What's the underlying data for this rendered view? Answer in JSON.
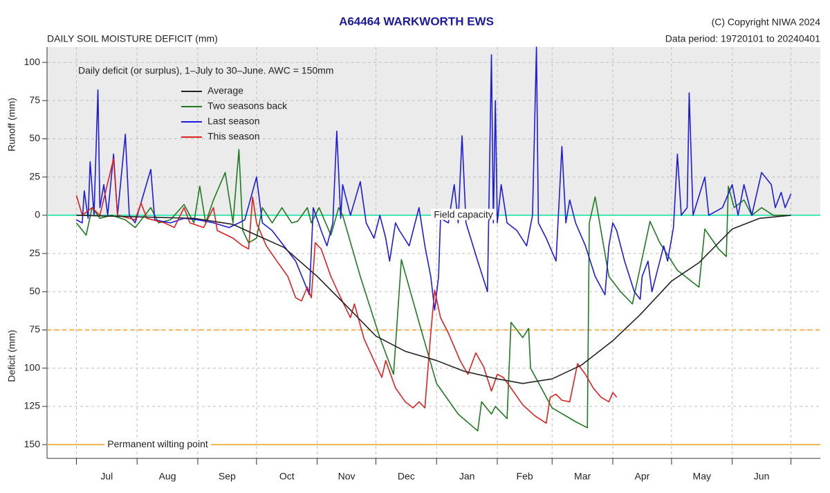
{
  "chart_data": {
    "type": "line",
    "title": "A64464  WARKWORTH EWS",
    "copyright": "(C) Copyright NIWA  2024",
    "subtitle": "DAILY SOIL MOISTURE DEFICIT (mm)",
    "data_period": "Data period:  19720101  to  20240401",
    "note": "Daily deficit (or surplus), 1–July to 30–June.  AWC = 150mm",
    "y_label_upper": "Runoff (mm)",
    "y_label_lower": "Deficit (mm)",
    "categories": [
      "Jul",
      "Aug",
      "Sep",
      "Oct",
      "Nov",
      "Dec",
      "Jan",
      "Feb",
      "Mar",
      "Apr",
      "May",
      "Jun"
    ],
    "xlim": [
      -15,
      380
    ],
    "xticks": [
      0,
      31,
      62,
      92,
      123,
      153,
      184,
      215,
      243,
      274,
      304,
      335,
      365
    ],
    "ylim": [
      -159,
      110
    ],
    "yticks": [
      100,
      75,
      50,
      25,
      0,
      {
        "value": -25,
        "label": "25"
      },
      {
        "value": -50,
        "label": "50"
      },
      {
        "value": -75,
        "label": "75"
      },
      {
        "value": -100,
        "label": "100"
      },
      {
        "value": -125,
        "label": "125"
      },
      {
        "value": -150,
        "label": "150"
      }
    ],
    "grid": true,
    "reference_lines": [
      {
        "value": 0,
        "label": "Field capacity",
        "color": "#3de8b0"
      },
      {
        "value": -75,
        "color": "#f5b342",
        "dashed": true
      },
      {
        "value": -150,
        "label": "Permanent wilting point",
        "color": "#f0b44c"
      }
    ],
    "series": [
      {
        "name": "Average",
        "color": "#222222",
        "x": [
          0,
          30,
          60,
          80,
          92,
          106,
          123,
          137,
          153,
          168,
          184,
          198,
          215,
          228,
          243,
          258,
          274,
          288,
          304,
          318,
          335,
          349,
          365
        ],
        "values": [
          0,
          -1,
          -2,
          -6,
          -13,
          -21,
          -40,
          -58,
          -79,
          -89,
          -95,
          -102,
          -107,
          -110,
          -107,
          -98,
          -82,
          -65,
          -43,
          -31,
          -9,
          -2,
          0
        ]
      },
      {
        "name": "Two seasons back",
        "color": "#1e7a1e",
        "x": [
          0,
          5,
          8,
          12,
          18,
          25,
          30,
          38,
          42,
          48,
          55,
          60,
          63,
          66,
          70,
          76,
          80,
          83,
          85,
          88,
          92,
          95,
          100,
          105,
          110,
          113,
          118,
          120,
          124,
          130,
          134,
          136,
          145,
          155,
          162,
          166,
          175,
          184,
          195,
          205,
          207,
          212,
          214,
          220,
          222,
          228,
          231,
          232,
          243,
          255,
          261,
          262,
          265,
          272,
          278,
          284,
          293,
          298,
          307,
          318,
          321,
          328,
          332,
          333,
          336,
          341,
          345,
          350,
          356,
          363
        ],
        "values": [
          -5,
          -13,
          5,
          -2,
          0,
          -3,
          -8,
          5,
          -5,
          -3,
          7,
          -5,
          19,
          -5,
          10,
          28,
          -5,
          43,
          -10,
          -18,
          -15,
          5,
          -5,
          5,
          -5,
          -4,
          5,
          -5,
          5,
          -13,
          5,
          0,
          -40,
          -80,
          -104,
          -29,
          -70,
          -110,
          -130,
          -141,
          -122,
          -130,
          -125,
          -133,
          -70,
          -80,
          -74,
          -100,
          -126,
          -135,
          -139,
          -5,
          12,
          -40,
          -50,
          -58,
          -4,
          -18,
          -36,
          -47,
          -9,
          -22,
          -27,
          19,
          5,
          10,
          0,
          5,
          0,
          0
        ]
      },
      {
        "name": "Last season",
        "color": "#1a1ae0",
        "x": [
          0,
          3,
          4,
          6,
          7,
          9,
          11,
          12,
          14,
          16,
          19,
          21,
          25,
          27,
          30,
          38,
          40,
          48,
          55,
          62,
          70,
          78,
          83,
          86,
          92,
          95,
          100,
          106,
          112,
          119,
          121,
          125,
          128,
          131,
          133,
          135,
          136,
          140,
          145,
          148,
          152,
          155,
          158,
          160,
          163,
          165,
          170,
          175,
          178,
          181,
          183,
          185,
          186,
          190,
          193,
          195,
          197,
          199,
          205,
          210,
          212,
          213,
          214,
          215,
          217,
          220,
          225,
          230,
          233,
          235,
          236,
          240,
          245,
          248,
          250,
          252,
          255,
          260,
          265,
          270,
          272,
          274,
          276,
          280,
          285,
          288,
          289,
          292,
          294,
          297,
          300,
          302,
          305,
          307,
          309,
          312,
          313,
          315,
          321,
          323,
          330,
          335,
          338,
          341,
          345,
          350,
          355,
          357,
          360,
          362,
          365
        ],
        "values": [
          -3,
          -5,
          16,
          -2,
          35,
          0,
          82,
          5,
          20,
          0,
          40,
          0,
          53,
          0,
          -5,
          30,
          -3,
          -5,
          -2,
          -3,
          -5,
          -8,
          -5,
          -3,
          25,
          -5,
          -10,
          -20,
          -30,
          -52,
          5,
          -10,
          -20,
          -5,
          55,
          -2,
          20,
          0,
          22,
          -5,
          -15,
          0,
          -15,
          -30,
          -5,
          -10,
          -20,
          5,
          -20,
          -40,
          -62,
          -40,
          -2,
          -5,
          20,
          -5,
          52,
          -5,
          -30,
          -50,
          105,
          -5,
          75,
          -5,
          20,
          -5,
          -10,
          -20,
          0,
          110,
          -5,
          -15,
          -30,
          45,
          -5,
          10,
          -5,
          -20,
          -40,
          -52,
          -20,
          -5,
          -10,
          -30,
          -50,
          -55,
          -40,
          -30,
          -50,
          -35,
          -20,
          -30,
          -8,
          40,
          0,
          5,
          80,
          0,
          25,
          0,
          5,
          20,
          0,
          20,
          0,
          28,
          20,
          5,
          15,
          5,
          14
        ]
      },
      {
        "name": "This season",
        "color": "#e02020",
        "x": [
          0,
          3,
          8,
          12,
          19,
          21,
          30,
          33,
          36,
          45,
          50,
          55,
          58,
          65,
          70,
          72,
          80,
          85,
          88,
          90,
          92,
          97,
          103,
          108,
          112,
          115,
          118,
          120,
          122,
          125,
          130,
          135,
          140,
          142,
          147,
          152,
          156,
          158,
          163,
          168,
          172,
          175,
          178,
          181,
          183,
          186,
          190,
          196,
          200,
          204,
          208,
          212,
          215,
          218,
          222,
          228,
          234,
          240,
          242,
          245,
          248,
          252,
          256,
          260,
          264,
          268,
          272,
          274,
          276
        ],
        "values": [
          13,
          0,
          5,
          0,
          37,
          0,
          -3,
          8,
          -2,
          -5,
          -8,
          5,
          -5,
          -8,
          5,
          -10,
          -15,
          -20,
          -22,
          12,
          -5,
          -20,
          -31,
          -40,
          -54,
          -56,
          -47,
          -54,
          -18,
          -22,
          -40,
          -54,
          -67,
          -58,
          -81,
          -95,
          -106,
          -95,
          -113,
          -122,
          -126,
          -122,
          -126,
          -77,
          -49,
          -67,
          -77,
          -95,
          -104,
          -90,
          -99,
          -115,
          -104,
          -106,
          -113,
          -124,
          -131,
          -136,
          -119,
          -117,
          -121,
          -122,
          -97,
          -104,
          -113,
          -119,
          -122,
          -116,
          -119
        ]
      }
    ]
  }
}
